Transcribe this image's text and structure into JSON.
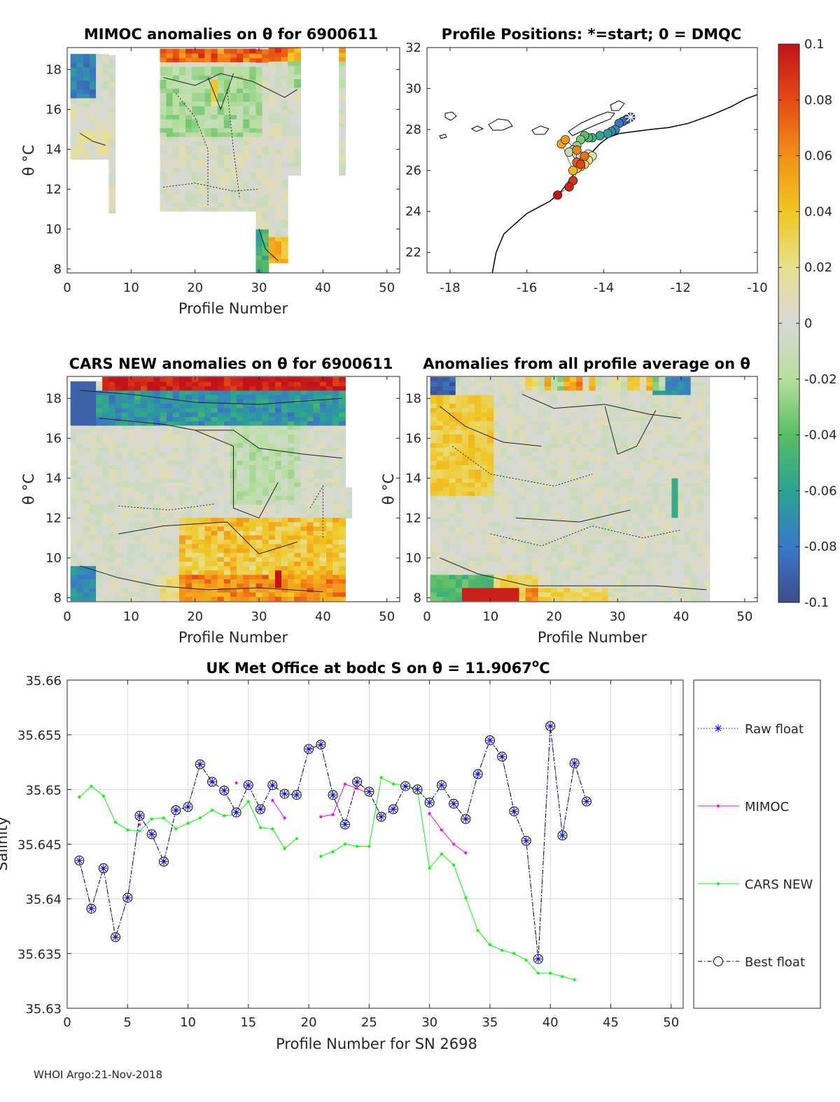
{
  "chart_data": [
    {
      "type": "heatmap",
      "title": "MIMOC anomalies on θ  for 6900611",
      "xlabel": "Profile Number",
      "ylabel": "θ °C",
      "xlim": [
        0,
        52
      ],
      "ylim": [
        7.8,
        19.1
      ],
      "xticks": [
        "0",
        "10",
        "20",
        "30",
        "40",
        "50"
      ],
      "yticks": [
        "8",
        "10",
        "12",
        "14",
        "16",
        "18"
      ]
    },
    {
      "type": "scatter",
      "title": "Profile Positions: *=start; 0 = DMQC",
      "xlim": [
        -18.6,
        -10
      ],
      "ylim": [
        21,
        32
      ],
      "xticks": [
        "-18",
        "-16",
        "-14",
        "-12",
        "-10"
      ],
      "yticks": [
        "22",
        "24",
        "26",
        "28",
        "30",
        "32"
      ],
      "positions_lon": [
        -13.3,
        -13.4,
        -13.5,
        -13.6,
        -13.7,
        -13.8,
        -13.9,
        -14.1,
        -14.3,
        -14.4,
        -14.5,
        -14.6,
        -14.7,
        -14.8,
        -14.9,
        -14.7,
        -14.6,
        -14.5,
        -14.4,
        -14.3,
        -14.4,
        -14.5,
        -14.6,
        -14.7,
        -14.8,
        -15.1,
        -15.0,
        -14.7,
        -14.5,
        -14.7,
        -14.6,
        -14.8,
        -14.9,
        -15.2
      ],
      "positions_lat": [
        28.6,
        28.5,
        28.4,
        28.3,
        28.0,
        27.9,
        27.8,
        27.7,
        27.6,
        27.6,
        27.7,
        27.5,
        27.2,
        27.0,
        26.9,
        26.8,
        26.7,
        26.6,
        26.8,
        26.7,
        26.5,
        26.3,
        26.2,
        26.1,
        26.0,
        27.3,
        27.5,
        27.0,
        26.7,
        26.4,
        26.3,
        25.5,
        25.2,
        24.8
      ],
      "coast_lon": [
        -16.9,
        -16.8,
        -16.6,
        -16.3,
        -16.0,
        -15.7,
        -15.4,
        -15.1,
        -14.9,
        -14.7,
        -14.5,
        -14.3,
        -14.1,
        -13.9,
        -13.6,
        -13.2,
        -12.8,
        -12.3,
        -11.8,
        -11.2,
        -10.7,
        -10.3,
        -10.0
      ],
      "coast_lat": [
        21.0,
        22.0,
        22.9,
        23.4,
        23.9,
        24.2,
        24.5,
        25.0,
        25.5,
        26.0,
        26.5,
        26.9,
        27.3,
        27.6,
        27.8,
        27.9,
        28.0,
        28.1,
        28.3,
        28.7,
        29.1,
        29.5,
        29.7
      ],
      "colorbar": {
        "ticks": [
          "0.1",
          "0.08",
          "0.06",
          "0.04",
          "0.02",
          "0",
          "-0.02",
          "-0.04",
          "-0.06",
          "-0.08",
          "-0.1"
        ],
        "range": [
          -0.1,
          0.1
        ]
      }
    },
    {
      "type": "heatmap",
      "title": "CARS NEW anomalies on θ for 6900611",
      "xlabel": "Profile Number",
      "ylabel": "θ °C",
      "xlim": [
        0,
        52
      ],
      "ylim": [
        7.8,
        19.1
      ],
      "xticks": [
        "0",
        "10",
        "20",
        "30",
        "40",
        "50"
      ],
      "yticks": [
        "8",
        "10",
        "12",
        "14",
        "16",
        "18"
      ]
    },
    {
      "type": "heatmap",
      "title": "Anomalies from all profile average on θ",
      "xlabel": "Profile Number",
      "ylabel": "θ °C",
      "xlim": [
        0,
        52
      ],
      "ylim": [
        7.8,
        19.1
      ],
      "xticks": [
        "0",
        "10",
        "20",
        "30",
        "40",
        "50"
      ],
      "yticks": [
        "8",
        "10",
        "12",
        "14",
        "16",
        "18"
      ]
    },
    {
      "type": "line",
      "title_prefix": "UK Met Office at bodc S on θ = 11.9067",
      "title_sup": "o",
      "title_suffix": "C",
      "xlabel": "Profile Number for SN 2698",
      "ylabel": "Salinity",
      "xlim": [
        0,
        51
      ],
      "ylim": [
        35.63,
        35.66
      ],
      "xticks": [
        "0",
        "5",
        "10",
        "15",
        "20",
        "25",
        "30",
        "35",
        "40",
        "45",
        "50"
      ],
      "yticks": [
        "35.66",
        "35.655",
        "35.65",
        "35.645",
        "35.64",
        "35.635",
        "35.63"
      ],
      "x": [
        1,
        2,
        3,
        4,
        5,
        6,
        7,
        8,
        9,
        10,
        11,
        12,
        13,
        14,
        15,
        16,
        17,
        18,
        19,
        20,
        21,
        22,
        23,
        24,
        25,
        26,
        27,
        28,
        29,
        30,
        31,
        32,
        33,
        34,
        35,
        36,
        37,
        38,
        39,
        40,
        41,
        42,
        43
      ],
      "series": [
        {
          "name": "Raw float",
          "color": "#0000ff",
          "values": [
            35.6435,
            35.6391,
            35.6428,
            35.6365,
            35.6401,
            35.6476,
            35.6459,
            35.6434,
            35.6481,
            35.6484,
            35.6523,
            35.6507,
            35.6499,
            35.6479,
            35.6504,
            35.6482,
            35.6504,
            35.6496,
            35.6495,
            35.6537,
            35.6541,
            35.6495,
            35.6468,
            35.6507,
            35.6498,
            35.6475,
            35.6482,
            35.6503,
            35.65,
            35.6488,
            35.6504,
            35.6487,
            35.6473,
            35.6514,
            35.6545,
            35.653,
            35.648,
            35.6453,
            35.6345,
            35.6558,
            35.6458,
            35.6524,
            35.6489
          ]
        },
        {
          "name": "MIMOC",
          "color": "#ff00ff",
          "values": [
            null,
            null,
            null,
            null,
            null,
            35.6468,
            null,
            null,
            null,
            null,
            null,
            null,
            null,
            35.6506,
            null,
            null,
            35.649,
            35.6474,
            null,
            null,
            35.6475,
            35.6477,
            35.6505,
            35.6501,
            35.6496,
            null,
            null,
            null,
            null,
            35.6478,
            35.6463,
            35.645,
            35.6442,
            null,
            null,
            null,
            null,
            null,
            null,
            null,
            null,
            null,
            null
          ]
        },
        {
          "name": "CARS NEW",
          "color": "#00ff00",
          "values": [
            35.6493,
            35.6503,
            35.6494,
            35.647,
            35.6463,
            35.6462,
            35.6473,
            35.6474,
            35.6464,
            35.6469,
            35.6474,
            35.6481,
            35.6476,
            35.6477,
            35.6489,
            35.6465,
            35.6464,
            35.6446,
            35.6455,
            null,
            35.6439,
            35.6443,
            35.645,
            35.6448,
            35.6448,
            35.6511,
            35.6505,
            35.6504,
            35.65,
            35.6428,
            35.6441,
            35.6431,
            35.6401,
            35.6371,
            35.6358,
            35.6353,
            35.635,
            35.6344,
            35.6332,
            35.6332,
            35.6329,
            35.6326,
            null
          ]
        },
        {
          "name": "Best float",
          "color": "#000000",
          "values": [
            35.6435,
            35.6391,
            35.6428,
            35.6365,
            35.6401,
            35.6476,
            35.6459,
            35.6434,
            35.6481,
            35.6484,
            35.6523,
            35.6507,
            35.6499,
            35.6479,
            35.6504,
            35.6482,
            35.6504,
            35.6496,
            35.6495,
            35.6537,
            35.6541,
            35.6495,
            35.6468,
            35.6507,
            35.6498,
            35.6475,
            35.6482,
            35.6503,
            35.65,
            35.6488,
            35.6504,
            35.6487,
            35.6473,
            35.6514,
            35.6545,
            35.653,
            35.648,
            35.6453,
            35.6345,
            35.6558,
            35.6458,
            35.6524,
            35.6489
          ]
        }
      ]
    }
  ],
  "footer": {
    "text": "WHOI Argo:21-Nov-2018"
  }
}
